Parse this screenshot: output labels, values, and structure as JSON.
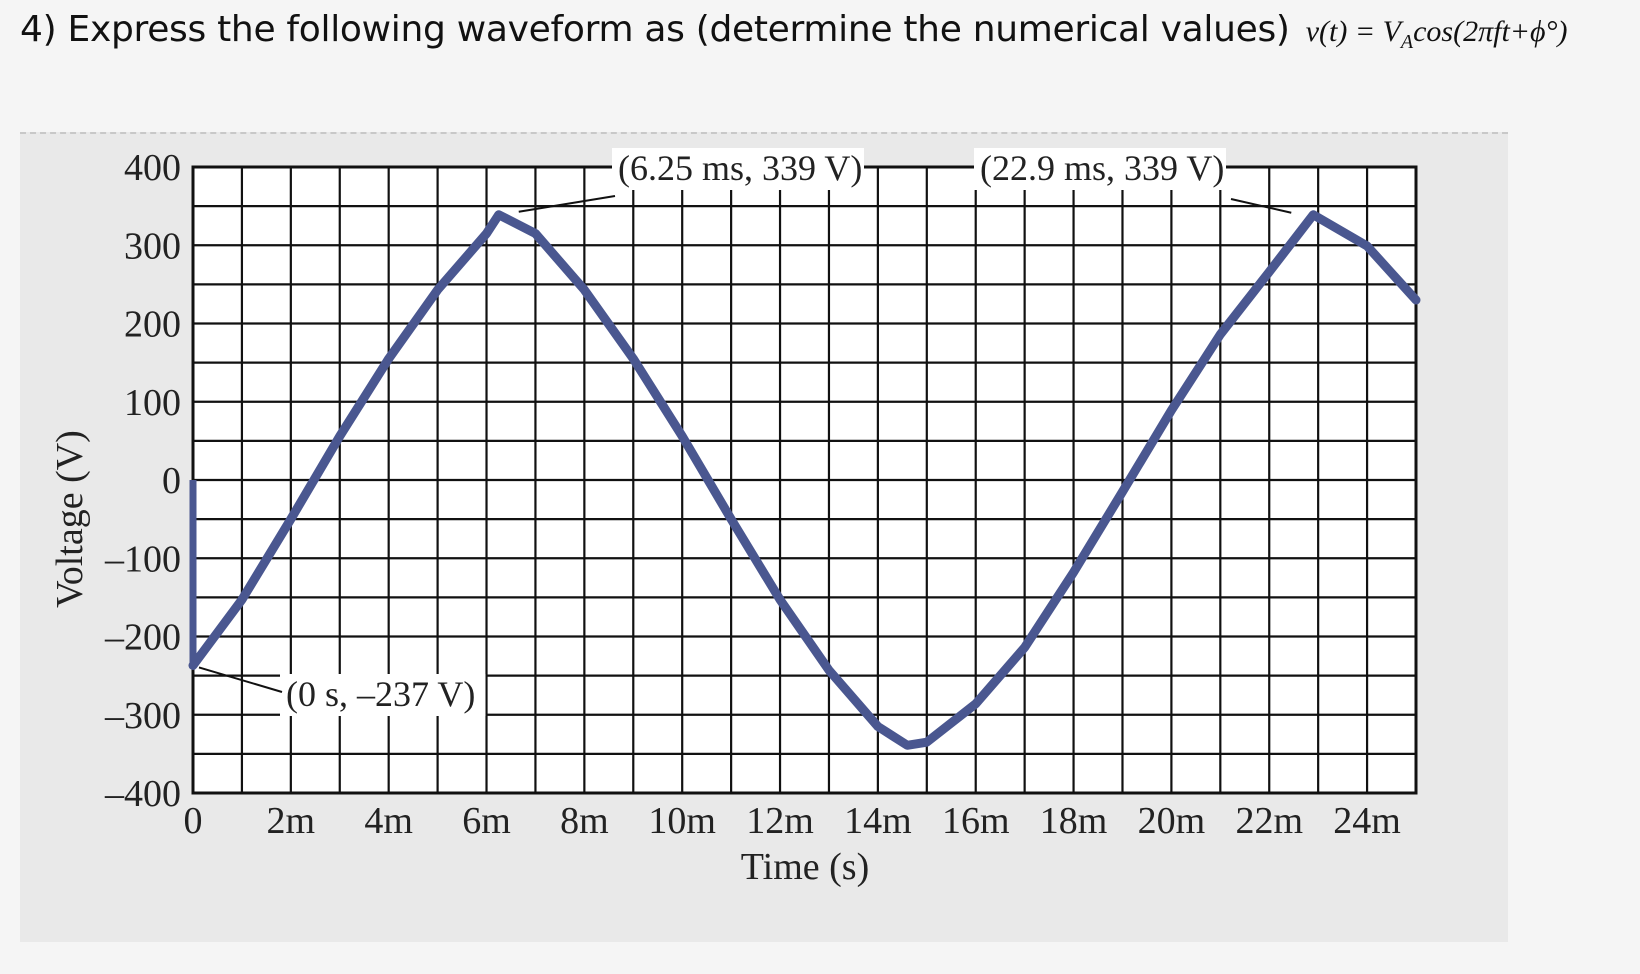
{
  "question": {
    "text": "4) Express the following waveform as (determine the numerical values)",
    "formula": "v(t) = V",
    "formula_sub": "A",
    "formula_rest": "cos(2πft+ϕ°)"
  },
  "chart_data": {
    "type": "line",
    "title": "",
    "xlabel": "Time (s)",
    "ylabel": "Voltage (V)",
    "xlim": [
      0,
      0.025
    ],
    "ylim": [
      -400,
      400
    ],
    "grid": true,
    "x_ticks": [
      {
        "value": 0,
        "label": "0"
      },
      {
        "value": 0.002,
        "label": "2m"
      },
      {
        "value": 0.004,
        "label": "4m"
      },
      {
        "value": 0.006,
        "label": "6m"
      },
      {
        "value": 0.008,
        "label": "8m"
      },
      {
        "value": 0.01,
        "label": "10m"
      },
      {
        "value": 0.012,
        "label": "12m"
      },
      {
        "value": 0.014,
        "label": "14m"
      },
      {
        "value": 0.016,
        "label": "16m"
      },
      {
        "value": 0.018,
        "label": "18m"
      },
      {
        "value": 0.02,
        "label": "20m"
      },
      {
        "value": 0.022,
        "label": "22m"
      },
      {
        "value": 0.024,
        "label": "24m"
      }
    ],
    "y_ticks": [
      {
        "value": 400,
        "label": "400"
      },
      {
        "value": 300,
        "label": "300"
      },
      {
        "value": 200,
        "label": "200"
      },
      {
        "value": 100,
        "label": "100"
      },
      {
        "value": 0,
        "label": "0"
      },
      {
        "value": -100,
        "label": "–100"
      },
      {
        "value": -200,
        "label": "–200"
      },
      {
        "value": -300,
        "label": "–300"
      },
      {
        "value": -400,
        "label": "–400"
      }
    ],
    "series": [
      {
        "color": "#4a5790",
        "x": [
          0,
          0.001,
          0.002,
          0.003,
          0.004,
          0.005,
          0.006,
          0.00625,
          0.007,
          0.008,
          0.009,
          0.01,
          0.011,
          0.012,
          0.013,
          0.014,
          0.0146,
          0.015,
          0.016,
          0.017,
          0.018,
          0.019,
          0.02,
          0.021,
          0.022,
          0.0229,
          0.024,
          0.025
        ],
        "y": [
          -237,
          -153,
          -50,
          56,
          155,
          243,
          315,
          339,
          315,
          243,
          155,
          56,
          -50,
          -153,
          -243,
          -315,
          -339,
          -335,
          -286,
          -214,
          -118,
          -15,
          89,
          186,
          266,
          339,
          299,
          230
        ]
      }
    ],
    "annotations": [
      {
        "text": "(6.25 ms, 339 V)",
        "x": 0.00625,
        "y": 339
      },
      {
        "text": "(22.9 ms, 339 V)",
        "x": 0.0229,
        "y": 339
      },
      {
        "text": "(0 s, –237 V)",
        "x": 0,
        "y": -237
      }
    ]
  }
}
